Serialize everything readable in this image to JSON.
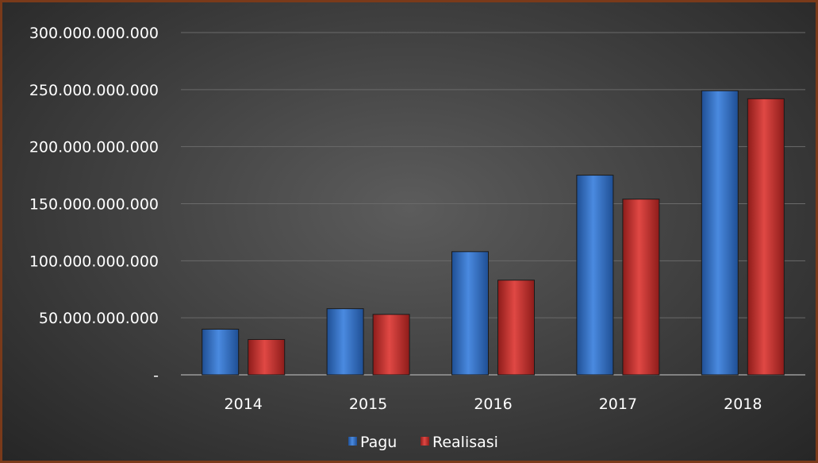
{
  "chart_data": {
    "type": "bar",
    "categories": [
      "2014",
      "2015",
      "2016",
      "2017",
      "2018"
    ],
    "series": [
      {
        "name": "Pagu",
        "values": [
          40000000000,
          58000000000,
          108000000000,
          175000000000,
          249000000000
        ],
        "color": "#3f7fd0"
      },
      {
        "name": "Realisasi",
        "values": [
          31000000000,
          53000000000,
          83000000000,
          154000000000,
          242000000000
        ],
        "color": "#d03a36"
      }
    ],
    "y_ticks": [
      "-",
      "50.000.000.000",
      "100.000.000.000",
      "150.000.000.000",
      "200.000.000.000",
      "250.000.000.000",
      "300.000.000.000"
    ],
    "ylim": [
      0,
      300000000000
    ],
    "grid": true,
    "legend_position": "bottom",
    "background": "#3a3a3a"
  }
}
